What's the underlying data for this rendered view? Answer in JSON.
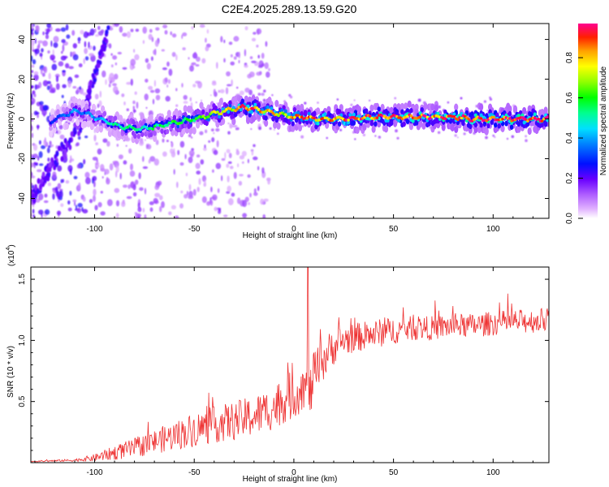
{
  "title": "C2E4.2025.289.13.59.G20",
  "chart_data": [
    {
      "type": "heatmap",
      "name": "spectrogram",
      "xlabel": "Height of straight line (km)",
      "ylabel": "Frequency (Hz)",
      "xlim": [
        -132,
        128
      ],
      "ylim": [
        -50,
        48
      ],
      "xticks": [
        -100,
        -50,
        0,
        50,
        100
      ],
      "yticks": [
        -40,
        -20,
        0,
        20,
        40
      ],
      "colorbar": {
        "label": "Normalized spectral amplitude",
        "range": [
          0.0,
          0.97
        ],
        "ticks": [
          0.0,
          0.2,
          0.4,
          0.6,
          0.8
        ],
        "tick_labels": [
          "0.0",
          "0.2",
          "0.4",
          "0.6",
          "0.8"
        ]
      },
      "ridge": {
        "x": [
          -132,
          -125,
          -120,
          -115,
          -110,
          -105,
          -100,
          -95,
          -90,
          -85,
          -80,
          -75,
          -70,
          -65,
          -60,
          -55,
          -50,
          -45,
          -40,
          -35,
          -30,
          -25,
          -20,
          -15,
          -10,
          -5,
          0,
          5,
          10,
          20,
          30,
          40,
          50,
          60,
          70,
          80,
          90,
          100,
          110,
          120,
          128
        ],
        "freq": [
          -10,
          -5,
          0,
          2,
          4,
          3,
          1,
          -1,
          -3,
          -4,
          -5,
          -5,
          -4,
          -3,
          -2,
          -1,
          0,
          1,
          3,
          4,
          5,
          6,
          5,
          4,
          3,
          2,
          1,
          1,
          0,
          0,
          0,
          1,
          1,
          1,
          1,
          1,
          0,
          0,
          0,
          0,
          0
        ],
        "amplitude": [
          0.15,
          0.2,
          0.3,
          0.35,
          0.4,
          0.35,
          0.4,
          0.45,
          0.5,
          0.5,
          0.55,
          0.5,
          0.55,
          0.55,
          0.6,
          0.6,
          0.6,
          0.65,
          0.7,
          0.75,
          0.8,
          0.85,
          0.85,
          0.8,
          0.8,
          0.75,
          0.8,
          0.85,
          0.85,
          0.85,
          0.9,
          0.9,
          0.9,
          0.9,
          0.9,
          0.95,
          0.95,
          0.95,
          0.95,
          0.95,
          0.95
        ]
      }
    },
    {
      "type": "line",
      "name": "snr",
      "xlabel": "Height of straight line (km)",
      "ylabel": "SNR (10 * v/v)",
      "y_multiplier_label": "(x10",
      "y_multiplier_exp": "4",
      "xlim": [
        -132,
        128
      ],
      "ylim": [
        0,
        1.6
      ],
      "xticks": [
        -100,
        -50,
        0,
        50,
        100
      ],
      "yticks": [
        0.5,
        1.0,
        1.5
      ],
      "ytick_labels": [
        "0.5",
        "1.0",
        "1.5"
      ],
      "color": "#ee3333",
      "series": [
        {
          "name": "SNR",
          "x": [
            -132,
            -110,
            -100,
            -90,
            -80,
            -70,
            -60,
            -50,
            -40,
            -30,
            -20,
            -10,
            -5,
            0,
            5,
            7,
            8,
            10,
            15,
            20,
            25,
            30,
            40,
            50,
            60,
            70,
            80,
            90,
            100,
            110,
            120,
            128
          ],
          "y": [
            0.01,
            0.02,
            0.04,
            0.08,
            0.12,
            0.17,
            0.22,
            0.27,
            0.31,
            0.34,
            0.38,
            0.45,
            0.52,
            0.55,
            0.62,
            1.62,
            0.55,
            0.7,
            0.85,
            0.95,
            1.0,
            1.02,
            1.05,
            1.08,
            1.1,
            1.1,
            1.12,
            1.12,
            1.14,
            1.15,
            1.16,
            1.17
          ],
          "noise_amplitude": [
            0.005,
            0.01,
            0.03,
            0.06,
            0.08,
            0.1,
            0.12,
            0.14,
            0.15,
            0.16,
            0.17,
            0.18,
            0.2,
            0.2,
            0.18,
            0.0,
            0.2,
            0.2,
            0.18,
            0.15,
            0.13,
            0.12,
            0.12,
            0.11,
            0.1,
            0.1,
            0.1,
            0.1,
            0.1,
            0.1,
            0.1,
            0.1
          ]
        }
      ]
    }
  ]
}
